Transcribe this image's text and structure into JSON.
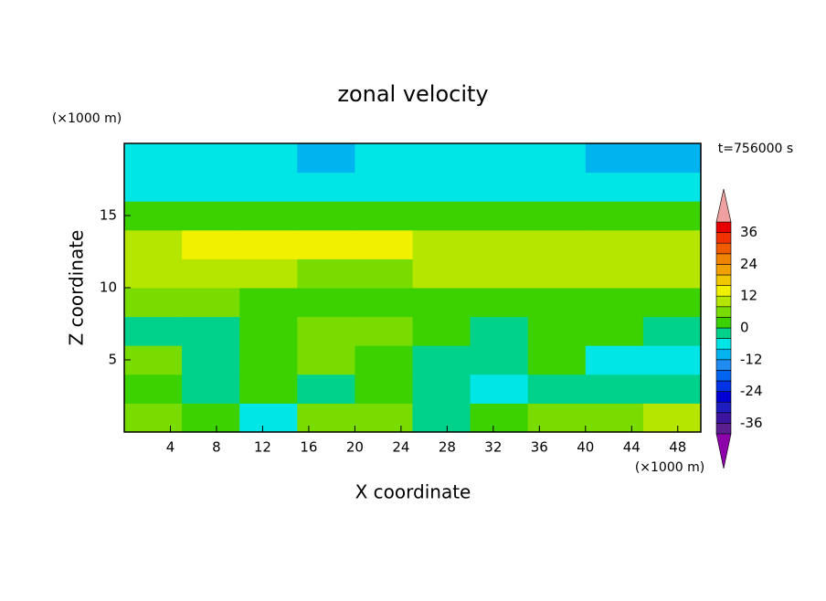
{
  "chart_data": {
    "type": "contour",
    "title": "zonal velocity",
    "x_label": "X coordinate",
    "y_label": "Z coordinate",
    "x_unit": "(×1000 m)",
    "y_unit": "(×1000 m)",
    "time_label": "t=756000 s",
    "x": [
      2.5,
      7.5,
      12.5,
      17.5,
      22.5,
      27.5,
      32.5,
      37.5,
      42.5,
      47.5
    ],
    "y": [
      1,
      3,
      5,
      7,
      9,
      11,
      13,
      15,
      17,
      19
    ],
    "values": [
      [
        4,
        2,
        -6,
        4,
        6,
        -2,
        2,
        6,
        6,
        10
      ],
      [
        2,
        -2,
        2,
        -2,
        2,
        -2,
        -6,
        -2,
        -2,
        -2
      ],
      [
        4,
        -2,
        2,
        6,
        2,
        -2,
        -2,
        2,
        -8,
        -6
      ],
      [
        -4,
        -4,
        2,
        6,
        4,
        2,
        -2,
        2,
        2,
        -2
      ],
      [
        4,
        4,
        2,
        2,
        2,
        2,
        2,
        2,
        2,
        2
      ],
      [
        8,
        8,
        8,
        6,
        6,
        8,
        8,
        8,
        8,
        8
      ],
      [
        10,
        14,
        14,
        14,
        14,
        10,
        10,
        10,
        10,
        10
      ],
      [
        2,
        2,
        2,
        2,
        2,
        2,
        2,
        2,
        2,
        2
      ],
      [
        -6,
        -6,
        -6,
        -6,
        -6,
        -6,
        -6,
        -6,
        -6,
        -6
      ],
      [
        -6,
        -6,
        -6,
        -10,
        -6,
        -6,
        -6,
        -6,
        -10,
        -10
      ]
    ],
    "xlim": [
      0,
      50
    ],
    "ylim": [
      0,
      20
    ],
    "xticks": [
      4,
      8,
      12,
      16,
      20,
      24,
      28,
      32,
      36,
      40,
      44,
      48
    ],
    "yticks": [
      5,
      10,
      15
    ],
    "levels": [
      -40,
      -36,
      -32,
      -28,
      -24,
      -20,
      -16,
      -12,
      -8,
      -4,
      0,
      4,
      8,
      12,
      16,
      20,
      24,
      28,
      32,
      36,
      40
    ],
    "colors": [
      "#5a1e90",
      "#3c14a0",
      "#1e1ec0",
      "#0000d2",
      "#0032e6",
      "#0064f0",
      "#1e8cf0",
      "#00b4f0",
      "#00e6e6",
      "#00d28c",
      "#3cd200",
      "#78dc00",
      "#b4e600",
      "#f0f000",
      "#f0c800",
      "#f0a000",
      "#f08200",
      "#f05a00",
      "#f03200",
      "#e60000"
    ],
    "under_color": "#8c00aa",
    "over_color": "#f0a0a0",
    "colorbar_ticks": [
      -36,
      -24,
      -12,
      0,
      12,
      24,
      36
    ]
  }
}
